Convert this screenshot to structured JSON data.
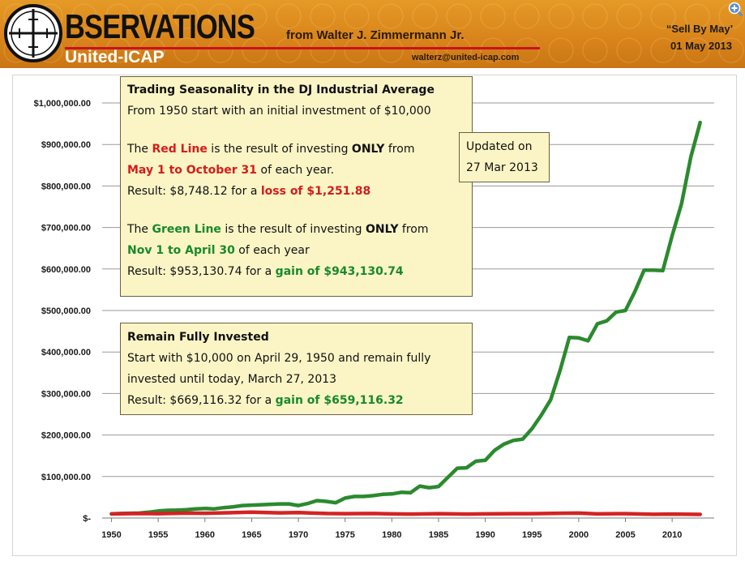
{
  "header": {
    "brand": "BSERVATIONS",
    "brand_sub": "United-ICAP",
    "author": "from Walter J. Zimmermann Jr.",
    "email": "walterz@united-icap.com",
    "tag": "“Sell By May’",
    "date": "01 May 2013",
    "zoom_icon": "zoom-in-icon",
    "logo_icon": "crosshair-icon",
    "colors": {
      "banner": "#d8831a",
      "rule": "#c8141c"
    }
  },
  "callouts": {
    "main": {
      "title": "Trading Seasonality in the DJ Industrial Average",
      "intro": "From 1950 start with an initial investment of $10,000",
      "red_pre": "The ",
      "red_name": "Red Line",
      "red_mid": " is the result of investing ",
      "red_only": "ONLY",
      "red_post": " from",
      "red_period": "May 1 to October 31",
      "red_period_post": " of each year.",
      "red_result_pre": "Result: $8,748.12 for a ",
      "red_result": "loss of $1,251.88",
      "green_pre": "The ",
      "green_name": "Green Line",
      "green_mid": " is the result of investing ",
      "green_only": "ONLY",
      "green_post": " from",
      "green_period": "Nov 1 to April 30",
      "green_period_post": " of each year",
      "green_result_pre": "Result: $953,130.74 for a ",
      "green_result": "gain of $943,130.74"
    },
    "invested": {
      "title": "Remain Fully Invested",
      "line1": "Start with $10,000 on April 29, 1950 and remain fully",
      "line2": "invested until today, March 27, 2013",
      "result_pre": "Result: $669,116.32 for a ",
      "result": "gain of $659,116.32"
    },
    "updated": {
      "line1": "Updated on",
      "line2": "27 Mar 2013"
    }
  },
  "chart_data": {
    "type": "line",
    "title": "Trading Seasonality in the DJ Industrial Average",
    "xlabel": "",
    "ylabel": "",
    "xlim": [
      1949,
      2014.5
    ],
    "ylim": [
      0,
      1000000
    ],
    "grid": true,
    "x_ticks": [
      1950,
      1955,
      1960,
      1965,
      1970,
      1975,
      1980,
      1985,
      1990,
      1995,
      2000,
      2005,
      2010
    ],
    "x_tick_labels": [
      "1950",
      "1955",
      "1960",
      "1965",
      "1970",
      "1975",
      "1980",
      "1985",
      "1990",
      "1995",
      "2000",
      "2005",
      "2010"
    ],
    "y_ticks": [
      0,
      100000,
      200000,
      300000,
      400000,
      500000,
      600000,
      700000,
      800000,
      900000,
      1000000
    ],
    "y_tick_labels": [
      "$-",
      "$100,000.00",
      "$200,000.00",
      "$300,000.00",
      "$400,000.00",
      "$500,000.00",
      "$600,000.00",
      "$700,000.00",
      "$800,000.00",
      "$900,000.00",
      "$1,000,000.00"
    ],
    "series": [
      {
        "name": "Nov 1 to April 30 (Green Line)",
        "color": "#2b8a2e",
        "x": [
          1950,
          1951,
          1952,
          1953,
          1954,
          1955,
          1956,
          1957,
          1958,
          1959,
          1960,
          1961,
          1962,
          1963,
          1964,
          1965,
          1966,
          1967,
          1968,
          1969,
          1970,
          1971,
          1972,
          1973,
          1974,
          1975,
          1976,
          1977,
          1978,
          1979,
          1980,
          1981,
          1982,
          1983,
          1984,
          1985,
          1986,
          1987,
          1988,
          1989,
          1990,
          1991,
          1992,
          1993,
          1994,
          1995,
          1996,
          1997,
          1998,
          1999,
          2000,
          2001,
          2002,
          2003,
          2004,
          2005,
          2006,
          2007,
          2008,
          2009,
          2010,
          2011,
          2012,
          2013
        ],
        "values": [
          10000,
          11000,
          11500,
          12000,
          14000,
          17000,
          18500,
          19000,
          20000,
          22000,
          23000,
          22000,
          25000,
          27000,
          30000,
          31000,
          32000,
          33000,
          34000,
          34000,
          30000,
          35000,
          42000,
          40000,
          37000,
          48000,
          52000,
          52000,
          54000,
          57000,
          58000,
          62000,
          61000,
          77000,
          73000,
          76000,
          98000,
          120000,
          121000,
          137000,
          139000,
          163000,
          178000,
          187000,
          190000,
          215000,
          248000,
          285000,
          355000,
          435000,
          434000,
          427000,
          468000,
          475000,
          496000,
          500000,
          545000,
          597000,
          597000,
          596000,
          680000,
          757000,
          870000,
          953000
        ]
      },
      {
        "name": "May 1 to October 31 (Red Line)",
        "color": "#d42323",
        "x": [
          1950,
          1953,
          1955,
          1958,
          1960,
          1962,
          1965,
          1968,
          1970,
          1973,
          1975,
          1978,
          1980,
          1982,
          1985,
          1988,
          1990,
          1993,
          1995,
          1998,
          2000,
          2002,
          2005,
          2008,
          2010,
          2013
        ],
        "values": [
          10000,
          11000,
          10500,
          12000,
          11500,
          12500,
          14000,
          12500,
          13000,
          11000,
          10500,
          11000,
          10000,
          9500,
          10500,
          9500,
          10000,
          10500,
          10500,
          11500,
          12000,
          10000,
          10500,
          9000,
          9500,
          8748
        ]
      }
    ]
  }
}
